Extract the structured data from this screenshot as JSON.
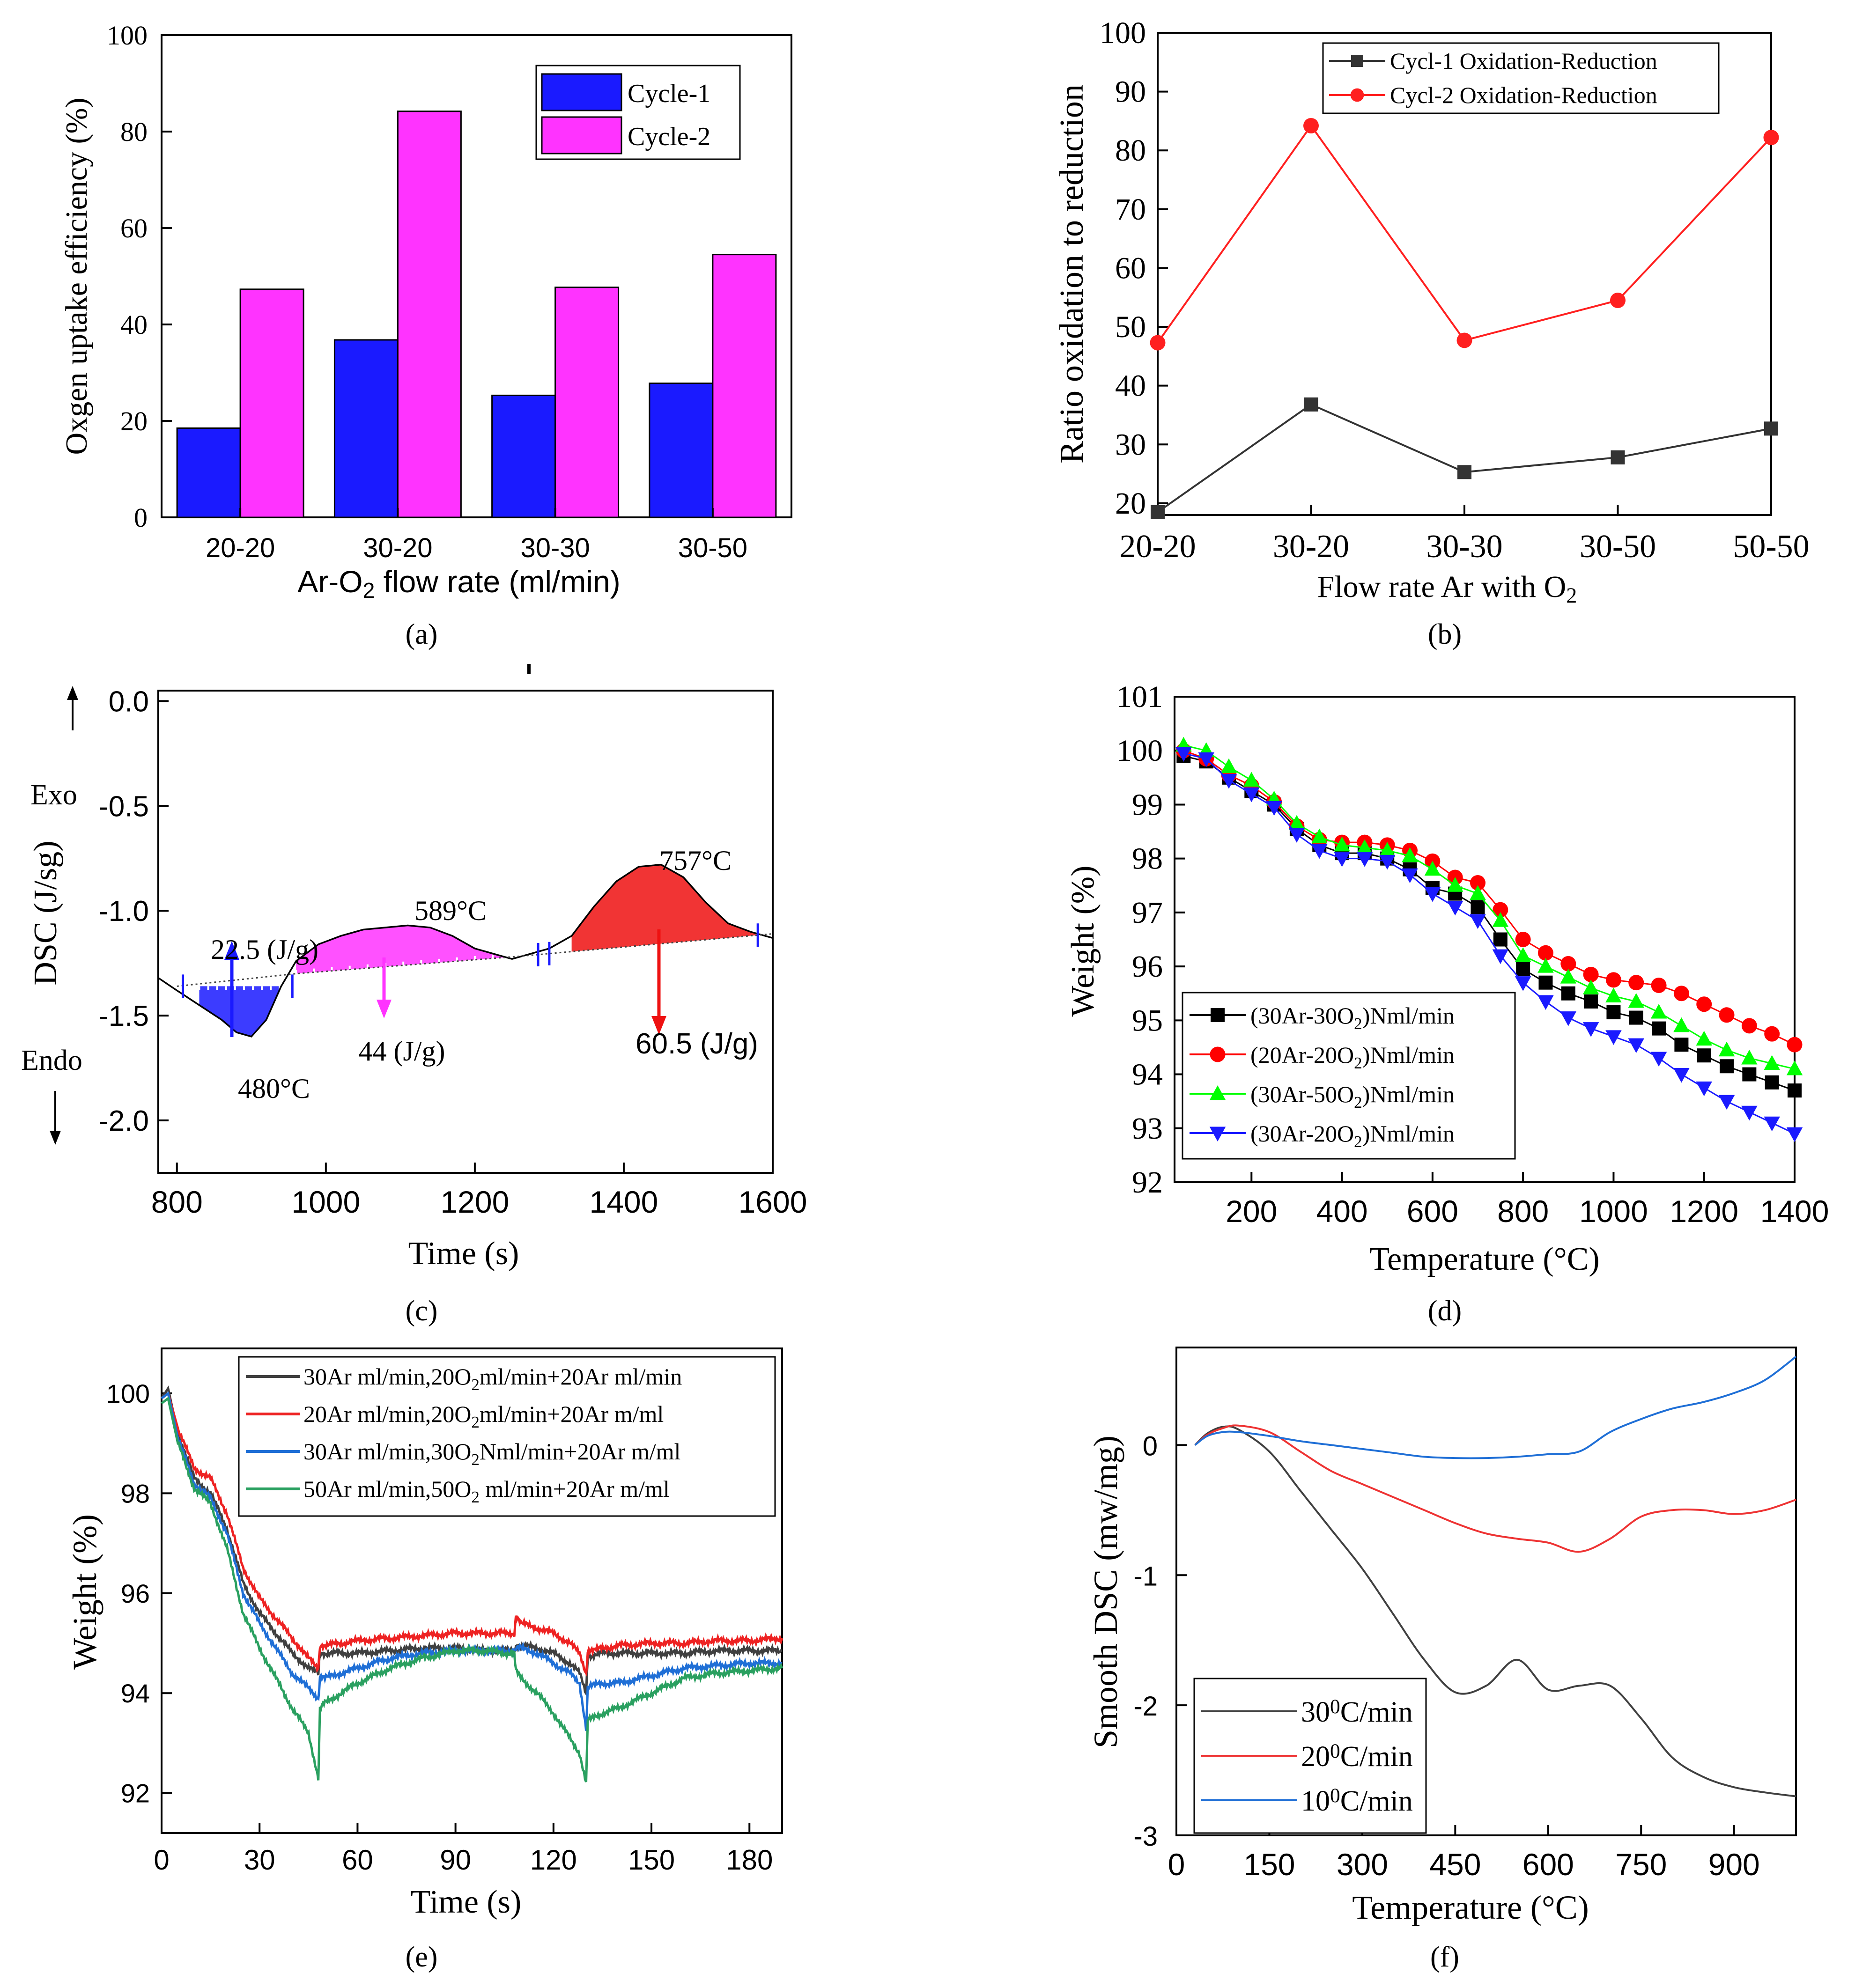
{
  "panel_labels": [
    "(a)",
    "(b)",
    "(c)",
    "(d)",
    "(e)",
    "(f)"
  ],
  "chart_data": [
    {
      "id": "a",
      "type": "bar",
      "categories": [
        "20-20",
        "30-20",
        "30-30",
        "30-50"
      ],
      "series": [
        {
          "name": "Cycle-1",
          "color": "#1a1aff",
          "values": [
            18.5,
            36.8,
            25.3,
            27.8
          ]
        },
        {
          "name": "Cycle-2",
          "color": "#ff33ff",
          "values": [
            47.3,
            84.2,
            47.7,
            54.5
          ]
        }
      ],
      "xlabel": "Ar-O2 flow rate (ml/min)",
      "ylabel": "Oxgen uptake efficiency (%)",
      "ylim": [
        0,
        100
      ],
      "yticks": [
        "0",
        "20",
        "40",
        "60",
        "80",
        "100"
      ],
      "legend": "top-right"
    },
    {
      "id": "b",
      "type": "line",
      "categories": [
        "20-20",
        "30-20",
        "30-30",
        "30-50",
        "50-50"
      ],
      "series": [
        {
          "name": "Cycl-1 Oxidation-Reduction",
          "color": "#333333",
          "marker": "square",
          "values": [
            18.5,
            36.8,
            25.3,
            27.8,
            32.7
          ]
        },
        {
          "name": "Cycl-2 Oxidation-Reduction",
          "color": "#ff2020",
          "marker": "circle",
          "values": [
            47.3,
            84.2,
            47.7,
            54.5,
            82.2
          ]
        }
      ],
      "xlabel": "Flow rate Ar with O2",
      "ylabel": "Ratio oxidation to reduction",
      "ylim": [
        18,
        100
      ],
      "yticks": [
        "20",
        "30",
        "40",
        "50",
        "60",
        "70",
        "80",
        "90",
        "100"
      ],
      "legend": "top-right"
    },
    {
      "id": "c",
      "type": "line",
      "xlabel": "Time (s)",
      "ylabel": "DSC (J/sg)",
      "xlim": [
        775,
        1600
      ],
      "ylim": [
        -2.25,
        0.05
      ],
      "xticks": [
        "800",
        "1000",
        "1200",
        "1400",
        "1600"
      ],
      "yticks": [
        "0.0",
        "-0.5",
        "-1.0",
        "-1.5",
        "-2.0"
      ],
      "x": [
        775,
        800,
        830,
        860,
        880,
        900,
        920,
        940,
        960,
        990,
        1020,
        1050,
        1080,
        1110,
        1140,
        1170,
        1200,
        1230,
        1250,
        1280,
        1300,
        1330,
        1360,
        1390,
        1420,
        1450,
        1480,
        1510,
        1540,
        1570,
        1600
      ],
      "y": [
        -1.32,
        -1.38,
        -1.45,
        -1.52,
        -1.58,
        -1.6,
        -1.52,
        -1.36,
        -1.24,
        -1.16,
        -1.12,
        -1.09,
        -1.08,
        -1.07,
        -1.08,
        -1.12,
        -1.18,
        -1.21,
        -1.23,
        -1.2,
        -1.18,
        -1.12,
        -0.98,
        -0.86,
        -0.79,
        -0.78,
        -0.84,
        -0.96,
        -1.06,
        -1.1,
        -1.13
      ],
      "annotations": [
        "Exo",
        "Endo",
        "22.5 (J/g)",
        "480°C",
        "44 (J/g)",
        "589°C",
        "757°C",
        "60.5 (J/g)"
      ]
    },
    {
      "id": "d",
      "type": "scatter",
      "xlabel": "Temperature (°C)",
      "ylabel": "Weight (%)",
      "xlim": [
        30,
        1400
      ],
      "ylim": [
        92,
        101
      ],
      "xticks": [
        "200",
        "400",
        "600",
        "800",
        "1000",
        "1200",
        "1400"
      ],
      "yticks": [
        "92",
        "93",
        "94",
        "95",
        "96",
        "97",
        "98",
        "99",
        "100",
        "101"
      ],
      "x": [
        50,
        100,
        150,
        200,
        250,
        300,
        350,
        400,
        450,
        500,
        550,
        600,
        650,
        700,
        750,
        800,
        850,
        900,
        950,
        1000,
        1050,
        1100,
        1150,
        1200,
        1250,
        1300,
        1350,
        1400
      ],
      "series": [
        {
          "name": "(30Ar-30O2)Nml/min",
          "legend_main": "(30Ar-30O",
          "legend_sub": "2",
          "legend_tail": ")Nml/min",
          "color": "#000000",
          "marker": "square",
          "values": [
            99.9,
            99.8,
            99.5,
            99.25,
            99.0,
            98.55,
            98.25,
            98.1,
            98.1,
            98.0,
            97.8,
            97.45,
            97.35,
            97.1,
            96.5,
            95.95,
            95.7,
            95.5,
            95.35,
            95.15,
            95.05,
            94.85,
            94.55,
            94.35,
            94.15,
            94.0,
            93.85,
            93.7
          ]
        },
        {
          "name": "(20Ar-20O2)Nml/min",
          "legend_main": "(20Ar-20O",
          "legend_sub": "2",
          "legend_tail": ")Nml/min",
          "color": "#ff0000",
          "marker": "circle",
          "values": [
            100.0,
            99.85,
            99.55,
            99.35,
            99.05,
            98.6,
            98.35,
            98.3,
            98.3,
            98.25,
            98.15,
            97.95,
            97.65,
            97.55,
            97.05,
            96.5,
            96.25,
            96.05,
            95.85,
            95.75,
            95.7,
            95.65,
            95.5,
            95.3,
            95.1,
            94.9,
            94.75,
            94.55
          ]
        },
        {
          "name": "(30Ar-50O2)Nml/min",
          "legend_main": "(30Ar-50O",
          "legend_sub": "2",
          "legend_tail": ")Nml/min",
          "color": "#00ff00",
          "marker": "triangle-up",
          "values": [
            100.1,
            100.0,
            99.7,
            99.45,
            99.1,
            98.65,
            98.4,
            98.25,
            98.2,
            98.15,
            98.05,
            97.8,
            97.5,
            97.35,
            96.85,
            96.2,
            96.0,
            95.8,
            95.6,
            95.45,
            95.35,
            95.15,
            94.9,
            94.65,
            94.45,
            94.3,
            94.2,
            94.1
          ]
        },
        {
          "name": "(30Ar-20O2)Nml/min",
          "legend_main": "(30Ar-20O",
          "legend_sub": "2",
          "legend_tail": ")Nml/min",
          "color": "#1a1aff",
          "marker": "triangle-down",
          "values": [
            99.95,
            99.85,
            99.45,
            99.2,
            98.95,
            98.45,
            98.15,
            98.0,
            98.0,
            97.95,
            97.7,
            97.35,
            97.1,
            96.85,
            96.2,
            95.7,
            95.35,
            95.05,
            94.85,
            94.7,
            94.55,
            94.3,
            94.0,
            93.75,
            93.5,
            93.3,
            93.1,
            92.9
          ]
        }
      ],
      "legend": "bottom-left"
    },
    {
      "id": "e",
      "type": "line",
      "xlabel": "Time (s)",
      "ylabel": "Weight (%)",
      "xlim": [
        0,
        190
      ],
      "ylim": [
        91.2,
        100.9
      ],
      "xticks": [
        "0",
        "30",
        "60",
        "90",
        "120",
        "150",
        "180"
      ],
      "yticks": [
        "92",
        "94",
        "96",
        "98",
        "100"
      ],
      "x": [
        0,
        2,
        5,
        10,
        15,
        20,
        25,
        30,
        35,
        40,
        45,
        48,
        48.5,
        50,
        55,
        60,
        70,
        80,
        90,
        100,
        105,
        108,
        108.5,
        110,
        115,
        120,
        125,
        128,
        130,
        130.5,
        132,
        135,
        140,
        150,
        160,
        170,
        180,
        190
      ],
      "series": [
        {
          "name": "30Ar ml/min,20O2ml/min+20Ar ml/min",
          "legend_main": "30Ar ml/min,20O",
          "legend_sub": "2",
          "legend_tail": "ml/min+20Ar ml/min",
          "color": "#404040",
          "values": [
            99.9,
            100.1,
            99.2,
            98.3,
            98.0,
            97.3,
            96.2,
            95.6,
            95.2,
            94.8,
            94.5,
            94.4,
            94.8,
            94.8,
            94.8,
            94.8,
            94.85,
            94.9,
            94.9,
            94.85,
            94.85,
            94.85,
            94.9,
            94.95,
            94.9,
            94.8,
            94.6,
            94.4,
            94.0,
            94.7,
            94.75,
            94.8,
            94.8,
            94.8,
            94.8,
            94.85,
            94.85,
            94.85
          ]
        },
        {
          "name": "20Ar ml/min,20O2ml/min+20Ar m/ml",
          "legend_main": "20Ar ml/min,20O",
          "legend_sub": "2",
          "legend_tail": "ml/min+20Ar m/ml",
          "color": "#ee2222",
          "values": [
            99.9,
            100.0,
            99.3,
            98.5,
            98.3,
            97.6,
            96.5,
            95.9,
            95.5,
            95.1,
            94.7,
            94.5,
            94.9,
            94.95,
            95.0,
            95.05,
            95.1,
            95.15,
            95.2,
            95.2,
            95.2,
            95.2,
            95.5,
            95.4,
            95.3,
            95.2,
            95.0,
            94.8,
            94.4,
            94.8,
            94.85,
            94.9,
            94.95,
            95.0,
            95.0,
            95.05,
            95.05,
            95.1
          ]
        },
        {
          "name": "30Ar ml/min,30O2Nml/min+20Ar m/ml",
          "legend_main": "30Ar ml/min,30O",
          "legend_sub": "2",
          "legend_tail": "Nml/min+20Ar m/ml",
          "color": "#1f6fd6",
          "values": [
            99.9,
            100.0,
            99.1,
            98.2,
            97.9,
            97.2,
            96.0,
            95.4,
            94.9,
            94.4,
            94.1,
            93.9,
            94.3,
            94.3,
            94.4,
            94.5,
            94.7,
            94.8,
            94.85,
            94.85,
            94.85,
            94.85,
            94.9,
            94.9,
            94.8,
            94.6,
            94.4,
            94.2,
            93.3,
            94.1,
            94.15,
            94.2,
            94.2,
            94.35,
            94.5,
            94.55,
            94.6,
            94.6
          ]
        },
        {
          "name": "50Ar ml/min,50O2 ml/min+20Ar m/ml",
          "legend_main": "50Ar ml/min,50O",
          "legend_sub": "2",
          "legend_tail": " ml/min+20Ar m/ml",
          "color": "#2aa060",
          "values": [
            99.8,
            99.9,
            99.0,
            98.1,
            97.8,
            96.9,
            95.6,
            94.9,
            94.3,
            93.7,
            93.2,
            92.3,
            93.7,
            93.8,
            94.0,
            94.2,
            94.5,
            94.7,
            94.85,
            94.85,
            94.8,
            94.8,
            94.5,
            94.3,
            94.0,
            93.6,
            93.1,
            92.8,
            92.2,
            93.5,
            93.5,
            93.6,
            93.7,
            94.0,
            94.3,
            94.4,
            94.45,
            94.5
          ]
        }
      ],
      "legend": "top-right"
    },
    {
      "id": "f",
      "type": "line",
      "xlabel": "Temperature (°C)",
      "ylabel": "Smooth DSC (mw/mg)",
      "xlim": [
        0,
        1000
      ],
      "ylim": [
        -3.0,
        0.75
      ],
      "xticks": [
        "0",
        "150",
        "300",
        "450",
        "600",
        "750",
        "900"
      ],
      "yticks": [
        "0",
        "-1",
        "-2",
        "-3"
      ],
      "x": [
        30,
        50,
        75,
        100,
        150,
        200,
        250,
        300,
        350,
        400,
        450,
        500,
        550,
        600,
        650,
        700,
        750,
        800,
        850,
        900,
        950,
        1000
      ],
      "series": [
        {
          "name": "30°C/min",
          "legend_main": "30",
          "legend_sup": "0",
          "legend_tail": "C/min",
          "color": "#404040",
          "values": [
            0.0,
            0.09,
            0.14,
            0.12,
            -0.05,
            -0.35,
            -0.65,
            -0.95,
            -1.3,
            -1.65,
            -1.9,
            -1.85,
            -1.65,
            -1.88,
            -1.85,
            -1.85,
            -2.1,
            -2.4,
            -2.55,
            -2.63,
            -2.67,
            -2.7
          ]
        },
        {
          "name": "20°C/min",
          "legend_main": "20",
          "legend_sup": "0",
          "legend_tail": "C/min",
          "color": "#ee3333",
          "values": [
            0.0,
            0.08,
            0.13,
            0.15,
            0.1,
            -0.05,
            -0.2,
            -0.3,
            -0.4,
            -0.5,
            -0.6,
            -0.68,
            -0.72,
            -0.75,
            -0.82,
            -0.72,
            -0.55,
            -0.5,
            -0.5,
            -0.53,
            -0.5,
            -0.42
          ]
        },
        {
          "name": "10°C/min",
          "legend_main": "10",
          "legend_sup": "0",
          "legend_tail": "C/min",
          "color": "#1f6fd6",
          "values": [
            0.0,
            0.07,
            0.1,
            0.1,
            0.07,
            0.03,
            0.0,
            -0.03,
            -0.06,
            -0.09,
            -0.1,
            -0.1,
            -0.09,
            -0.07,
            -0.05,
            0.1,
            0.2,
            0.28,
            0.33,
            0.4,
            0.5,
            0.68
          ]
        }
      ],
      "legend": "bottom-left"
    }
  ]
}
